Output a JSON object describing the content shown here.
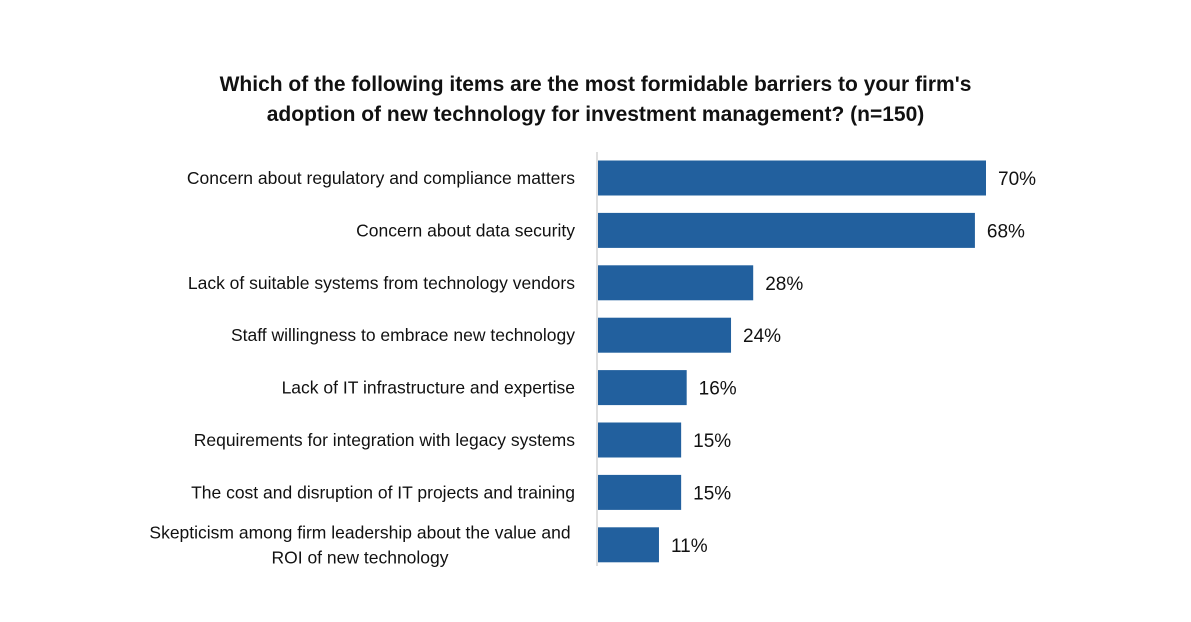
{
  "chart_data": {
    "type": "bar",
    "orientation": "horizontal",
    "title_lines": [
      "Which of the following items are the most formidable barriers to your firm's",
      "adoption of new technology for investment management? (n=150)"
    ],
    "categories": [
      [
        "Concern about regulatory and compliance matters"
      ],
      [
        "Concern about data security"
      ],
      [
        "Lack of suitable systems from technology vendors"
      ],
      [
        "Staff willingness to embrace new technology"
      ],
      [
        "Lack of IT infrastructure and expertise"
      ],
      [
        "Requirements for integration with legacy systems"
      ],
      [
        "The cost and disruption of IT projects and training"
      ],
      [
        "Skepticism among firm leadership about the value and",
        "ROI of new technology"
      ]
    ],
    "values": [
      70,
      68,
      28,
      24,
      16,
      15,
      15,
      11
    ],
    "value_labels": [
      "70%",
      "68%",
      "28%",
      "24%",
      "16%",
      "15%",
      "15%",
      "11%"
    ],
    "unit": "%",
    "xlim": [
      0,
      70
    ],
    "bar_color": "#22609e",
    "axis_color": "#bfbfbf",
    "grid": false,
    "legend": "none"
  }
}
